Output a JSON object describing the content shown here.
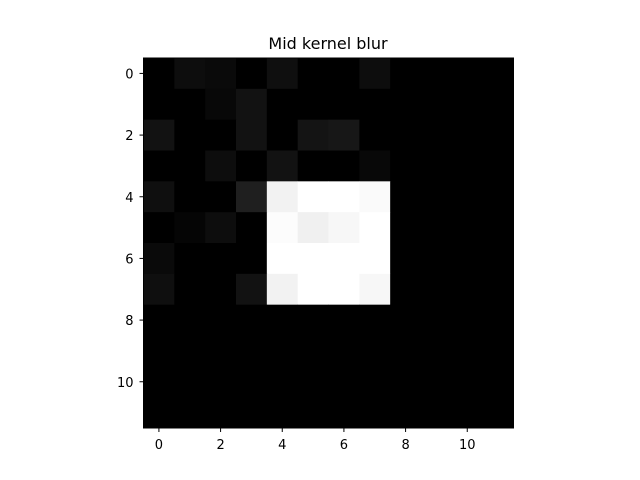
{
  "chart_data": {
    "type": "heatmap",
    "title": "Mid kernel blur",
    "xlabel": "",
    "ylabel": "",
    "colormap": "gray",
    "vmin": 0,
    "vmax": 1,
    "x_ticks": [
      "0",
      "2",
      "4",
      "6",
      "8",
      "10"
    ],
    "y_ticks": [
      "0",
      "2",
      "4",
      "6",
      "8",
      "10"
    ],
    "xlim": [
      -0.5,
      11.5
    ],
    "ylim": [
      11.5,
      -0.5
    ],
    "grid": false,
    "legend": "none",
    "values": [
      [
        0.0,
        0.05,
        0.04,
        0.0,
        0.06,
        0.0,
        0.0,
        0.05,
        0.0,
        0.0,
        0.0,
        0.0
      ],
      [
        0.0,
        0.0,
        0.03,
        0.07,
        0.0,
        0.0,
        0.0,
        0.0,
        0.0,
        0.0,
        0.0,
        0.0
      ],
      [
        0.07,
        0.0,
        0.0,
        0.07,
        0.0,
        0.08,
        0.09,
        0.0,
        0.0,
        0.0,
        0.0,
        0.0
      ],
      [
        0.0,
        0.0,
        0.05,
        0.0,
        0.07,
        0.0,
        0.0,
        0.03,
        0.0,
        0.0,
        0.0,
        0.0
      ],
      [
        0.06,
        0.0,
        0.0,
        0.12,
        0.95,
        1.0,
        1.0,
        0.98,
        0.0,
        0.0,
        0.0,
        0.0
      ],
      [
        0.0,
        0.02,
        0.05,
        0.0,
        0.99,
        0.94,
        0.97,
        1.0,
        0.0,
        0.0,
        0.0,
        0.0
      ],
      [
        0.04,
        0.0,
        0.0,
        0.0,
        1.0,
        1.0,
        1.0,
        1.0,
        0.0,
        0.0,
        0.0,
        0.0
      ],
      [
        0.06,
        0.0,
        0.0,
        0.07,
        0.95,
        1.0,
        1.0,
        0.97,
        0.0,
        0.0,
        0.0,
        0.0
      ],
      [
        0.0,
        0.0,
        0.0,
        0.0,
        0.0,
        0.0,
        0.0,
        0.0,
        0.0,
        0.0,
        0.0,
        0.0
      ],
      [
        0.0,
        0.0,
        0.0,
        0.0,
        0.0,
        0.0,
        0.0,
        0.0,
        0.0,
        0.0,
        0.0,
        0.0
      ],
      [
        0.0,
        0.0,
        0.0,
        0.0,
        0.0,
        0.0,
        0.0,
        0.0,
        0.0,
        0.0,
        0.0,
        0.0
      ],
      [
        0.0,
        0.0,
        0.0,
        0.0,
        0.0,
        0.0,
        0.0,
        0.0,
        0.0,
        0.0,
        0.0,
        0.0
      ]
    ]
  }
}
